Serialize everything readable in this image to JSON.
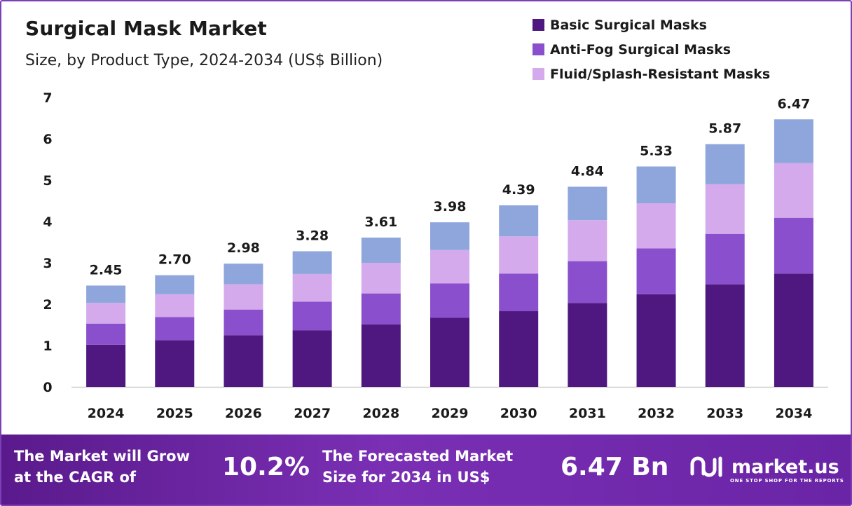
{
  "header": {
    "title": "Surgical Mask Market",
    "subtitle": "Size, by Product Type, 2024-2034 (US$ Billion)"
  },
  "legend": [
    {
      "label": "Basic Surgical Masks",
      "color": "#4f1880"
    },
    {
      "label": "Anti-Fog Surgical Masks",
      "color": "#8a4fcc"
    },
    {
      "label": "Fluid/Splash-Resistant Masks",
      "color": "#d4aaec"
    }
  ],
  "colors": {
    "basic": "#4f1880",
    "antifog": "#8a4fcc",
    "fluid": "#d4aaec",
    "other": "#8fa6dc",
    "axis": "#cccccc",
    "footer": "#6a24a6"
  },
  "chart_data": {
    "type": "bar",
    "stacked": true,
    "categories": [
      "2024",
      "2025",
      "2026",
      "2027",
      "2028",
      "2029",
      "2030",
      "2031",
      "2032",
      "2033",
      "2034"
    ],
    "series": [
      {
        "name": "Basic Surgical Masks",
        "values": [
          1.02,
          1.13,
          1.25,
          1.37,
          1.51,
          1.67,
          1.83,
          2.03,
          2.24,
          2.48,
          2.74
        ]
      },
      {
        "name": "Anti-Fog Surgical Masks",
        "values": [
          0.51,
          0.56,
          0.62,
          0.69,
          0.75,
          0.83,
          0.91,
          1.01,
          1.11,
          1.22,
          1.35
        ]
      },
      {
        "name": "Fluid/Splash-Resistant Masks",
        "values": [
          0.5,
          0.55,
          0.61,
          0.67,
          0.74,
          0.81,
          0.9,
          0.99,
          1.09,
          1.2,
          1.32
        ]
      },
      {
        "values": [
          0.42,
          0.46,
          0.5,
          0.55,
          0.61,
          0.67,
          0.75,
          0.81,
          0.89,
          0.97,
          1.06
        ]
      }
    ],
    "totals": [
      "2.45",
      "2.70",
      "2.98",
      "3.28",
      "3.61",
      "3.98",
      "4.39",
      "4.84",
      "5.33",
      "5.87",
      "6.47"
    ],
    "yticks": [
      0,
      1,
      2,
      3,
      4,
      5,
      6,
      7
    ],
    "ylim": [
      0,
      7
    ],
    "title": "Surgical Mask Market",
    "subtitle": "Size, by Product Type, 2024-2034 (US$ Billion)",
    "xlabel": "",
    "ylabel": "",
    "grid": false,
    "legend_position": "top-right"
  },
  "footer": {
    "cagr_text_line1": "The Market will Grow",
    "cagr_text_line2": "at the CAGR of",
    "cagr_value": "10.2%",
    "forecast_text_line1": "The Forecasted Market",
    "forecast_text_line2": "Size for 2034 in US$",
    "forecast_value": "6.47 Bn",
    "brand": "market.us",
    "tagline": "ONE STOP SHOP FOR THE REPORTS"
  }
}
